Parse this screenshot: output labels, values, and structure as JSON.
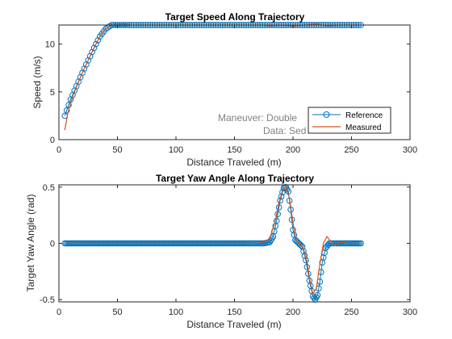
{
  "colors": {
    "reference": "#0072BD",
    "measured": "#D95319",
    "axis": "#262626",
    "annotation": "#808080"
  },
  "chart_data": [
    {
      "type": "line",
      "title": "Target Speed Along Trajectory",
      "xlabel": "Distance Traveled (m)",
      "ylabel": "Speed (m/s)",
      "xlim": [
        0,
        300
      ],
      "ylim": [
        0,
        12
      ],
      "xticks": [
        "0",
        "50",
        "100",
        "150",
        "200",
        "250",
        "300"
      ],
      "yticks": [
        "0",
        "5",
        "10"
      ],
      "annotations": [
        "Maneuver: Double",
        "Data: Sed"
      ],
      "legend": {
        "position": "bottom-right",
        "entries": [
          "Reference",
          "Measured"
        ]
      },
      "series": [
        {
          "name": "Reference",
          "marker": "circle",
          "x": [
            5,
            10,
            15,
            20,
            25,
            30,
            35,
            40,
            45,
            50,
            55,
            60,
            80,
            100,
            120,
            140,
            160,
            180,
            200,
            220,
            240,
            258
          ],
          "y": [
            2.5,
            4.2,
            5.6,
            7.0,
            8.3,
            9.6,
            10.8,
            11.6,
            12.0,
            12.0,
            12.0,
            12.0,
            12.0,
            12.0,
            12.0,
            12.0,
            12.0,
            12.0,
            12.0,
            12.0,
            12.0,
            12.0
          ]
        },
        {
          "name": "Measured",
          "marker": "none",
          "x": [
            5,
            8,
            12,
            16,
            20,
            25,
            30,
            35,
            40,
            45,
            50,
            60,
            100,
            150,
            175,
            180,
            190,
            200,
            210,
            220,
            230,
            240,
            250,
            258
          ],
          "y": [
            1.0,
            3.0,
            4.6,
            5.8,
            7.0,
            8.3,
            9.6,
            10.8,
            11.6,
            12.0,
            12.0,
            12.0,
            12.0,
            12.0,
            12.0,
            11.9,
            12.0,
            11.9,
            12.0,
            12.1,
            11.9,
            12.0,
            12.0,
            12.0
          ]
        }
      ]
    },
    {
      "type": "line",
      "title": "Target Yaw Angle Along Trajectory",
      "xlabel": "Distance Traveled (m)",
      "ylabel": "Target Yaw Angle (rad)",
      "xlim": [
        0,
        300
      ],
      "ylim": [
        -0.52,
        0.52
      ],
      "xticks": [
        "0",
        "50",
        "100",
        "150",
        "200",
        "250",
        "300"
      ],
      "yticks": [
        "-0.5",
        "0",
        "0.5"
      ],
      "series": [
        {
          "name": "Reference",
          "marker": "circle",
          "x": [
            5,
            20,
            40,
            60,
            80,
            100,
            120,
            140,
            160,
            170,
            175,
            180,
            183,
            186,
            189,
            192,
            194,
            196,
            198,
            200,
            202,
            205,
            208,
            211,
            214,
            217,
            219,
            221,
            223,
            225,
            228,
            231,
            235,
            240,
            250,
            258
          ],
          "y": [
            0,
            0,
            0,
            0,
            0,
            0,
            0,
            0,
            0,
            0,
            0,
            0.01,
            0.06,
            0.2,
            0.38,
            0.49,
            0.5,
            0.46,
            0.3,
            0.12,
            0.03,
            0,
            -0.03,
            -0.15,
            -0.33,
            -0.47,
            -0.5,
            -0.46,
            -0.34,
            -0.17,
            -0.04,
            0,
            0,
            0,
            0,
            0
          ]
        },
        {
          "name": "Measured",
          "marker": "none",
          "x": [
            5,
            50,
            100,
            150,
            170,
            175,
            180,
            185,
            188,
            191,
            194,
            197,
            200,
            203,
            207,
            211,
            214,
            217,
            220,
            223,
            226,
            229,
            232,
            236,
            240,
            245,
            250,
            258
          ],
          "y": [
            0,
            0,
            0,
            0,
            0,
            0.01,
            0.04,
            0.2,
            0.36,
            0.47,
            0.5,
            0.4,
            0.18,
            0.02,
            -0.01,
            -0.1,
            -0.3,
            -0.45,
            -0.4,
            -0.18,
            0.0,
            0.06,
            0.02,
            -0.02,
            0.01,
            0.0,
            0.0,
            0.0
          ]
        }
      ]
    }
  ]
}
